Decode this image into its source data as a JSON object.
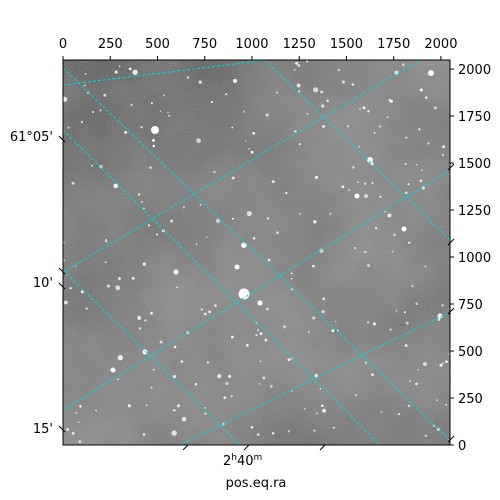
{
  "chart_data": {
    "type": "image",
    "xlabel": "pos.eq.ra",
    "pixel_axes": {
      "x": {
        "range": [
          0,
          2048
        ],
        "ticks": [
          0,
          250,
          500,
          750,
          1000,
          1250,
          1500,
          1750,
          2000
        ],
        "tick_labels": [
          "0",
          "250",
          "500",
          "750",
          "1000",
          "1250",
          "1500",
          "1750",
          "2000"
        ]
      },
      "y": {
        "range": [
          0,
          2048
        ],
        "ticks": [
          0,
          250,
          500,
          750,
          1000,
          1250,
          1500,
          1750,
          2000
        ],
        "tick_labels": [
          "0",
          "250",
          "500",
          "750",
          "1000",
          "1250",
          "1500",
          "1750",
          "2000"
        ]
      }
    },
    "world_axes": {
      "ra_label": {
        "hours": "2",
        "minutes": "40",
        "superscripts": [
          "h",
          "m"
        ]
      },
      "dec_labels": [
        "61°05'",
        "10'",
        "15'"
      ]
    },
    "grid": true,
    "grid_color": "#00d8d8",
    "image_colormap": "gray"
  }
}
